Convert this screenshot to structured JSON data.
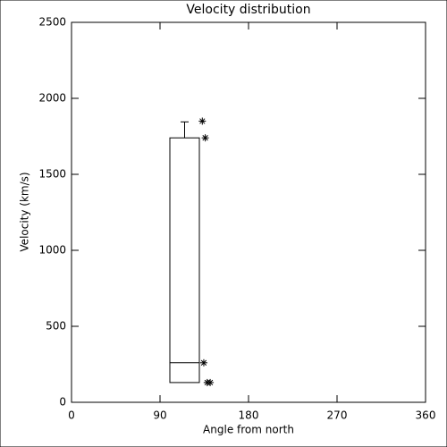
{
  "chart_data": {
    "type": "box",
    "title": "Velocity distribution",
    "x_label": "Angle from north",
    "y_label": "Velocity (km/s)",
    "xlim": [
      0,
      360
    ],
    "xticks": [
      0,
      90,
      180,
      270,
      360
    ],
    "ylim": [
      0,
      2500
    ],
    "yticks": [
      0,
      500,
      1000,
      1500,
      2000,
      2500
    ],
    "color": "#000000",
    "boxes": [
      {
        "x_left": 100,
        "x_right": 130,
        "low": 130,
        "median": 260,
        "high": 1740,
        "whisker": 1845,
        "whisker_x": 115
      }
    ],
    "points": {
      "x": [
        133,
        136,
        134.5,
        138,
        141
      ],
      "y": [
        1850,
        1740,
        260,
        130,
        130
      ]
    }
  }
}
